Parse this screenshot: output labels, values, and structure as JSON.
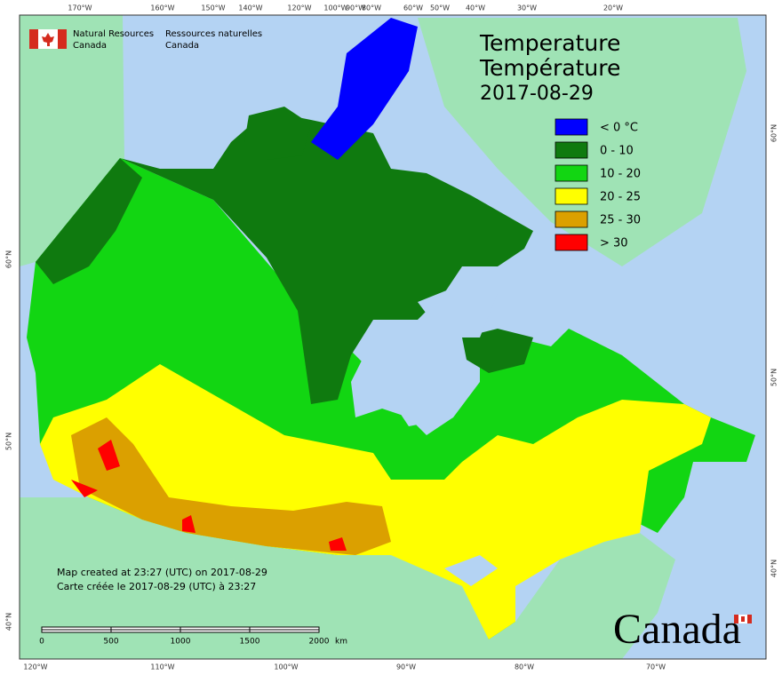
{
  "header": {
    "dept_en": [
      "Natural Resources",
      "Canada"
    ],
    "dept_fr": [
      "Ressources naturelles",
      "Canada"
    ]
  },
  "title": {
    "en": "Temperature",
    "fr": "Température",
    "date": "2017-08-29"
  },
  "legend": [
    {
      "label": "< 0 °C",
      "color": "#0000ff"
    },
    {
      "label": "0 - 10",
      "color": "#0f7a0f"
    },
    {
      "label": "10 - 20",
      "color": "#12d612"
    },
    {
      "label": "20 - 25",
      "color": "#ffff00"
    },
    {
      "label": "25 - 30",
      "color": "#dba000"
    },
    {
      "label": "> 30",
      "color": "#ff0000"
    }
  ],
  "graticule": {
    "top": [
      "170°W",
      "160°W",
      "150°W",
      "140°W",
      "120°W",
      "100°W",
      "90°W",
      "80°W",
      "60°W",
      "50°W",
      "40°W",
      "30°W",
      "20°W"
    ],
    "bottom": [
      "120°W",
      "110°W",
      "100°W",
      "90°W",
      "80°W",
      "70°W"
    ],
    "left": [
      "60°N",
      "50°N",
      "40°N"
    ],
    "right": [
      "60°N",
      "50°N",
      "40°N"
    ]
  },
  "notes": [
    "Map created at 23:27 (UTC) on 2017-08-29",
    "Carte créée le 2017-08-29 (UTC) à 23:27"
  ],
  "scale_bar": {
    "labels": [
      "0",
      "500",
      "1000",
      "1500",
      "2000"
    ],
    "unit": "km"
  },
  "wordmark": "Canada"
}
